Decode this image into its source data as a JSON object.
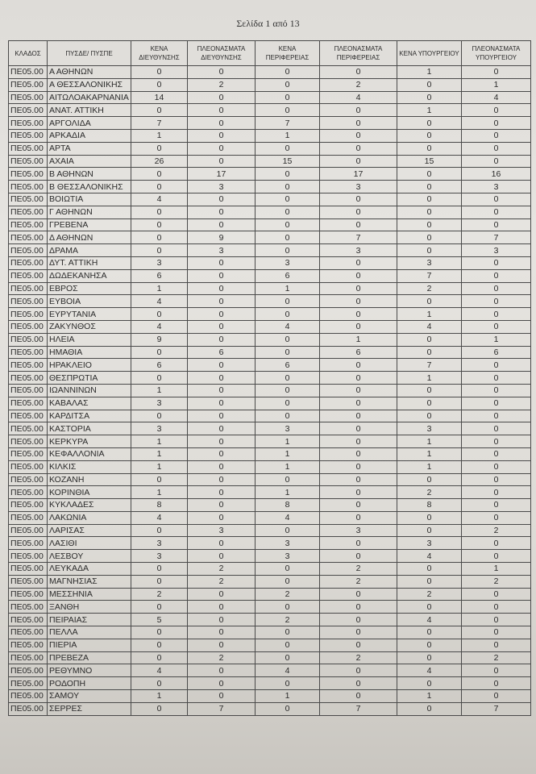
{
  "header": {
    "page": "Σελίδα 1 από 13"
  },
  "table": {
    "columns": [
      "ΚΛΑΔΟΣ",
      "ΠΥΣΔΕ/ ΠΥΣΠΕ",
      "ΚΕΝΑ ΔΙΕΥΘΥΝΣΗΣ",
      "ΠΛΕΟΝΑΣΜΑΤΑ ΔΙΕΥΘΥΝΣΗΣ",
      "ΚΕΝΑ ΠΕΡΙΦΕΡΕΙΑΣ",
      "ΠΛΕΟΝΑΣΜΑΤΑ ΠΕΡΙΦΕΡΕΙΑΣ",
      "ΚΕΝΑ ΥΠΟΥΡΓΕΙΟΥ",
      "ΠΛΕΟΝΑΣΜΑΤΑ ΥΠΟΥΡΓΕΙΟΥ"
    ],
    "rows": [
      [
        "ΠΕ05.00",
        "Α ΑΘΗΝΩΝ",
        0,
        0,
        0,
        0,
        1,
        0
      ],
      [
        "ΠΕ05.00",
        "Α ΘΕΣΣΑΛΟΝΙΚΗΣ",
        0,
        2,
        0,
        2,
        0,
        1
      ],
      [
        "ΠΕ05.00",
        "ΑΙΤΩΛΟΑΚΑΡΝΑΝΙΑ",
        14,
        0,
        0,
        4,
        0,
        4
      ],
      [
        "ΠΕ05.00",
        "ΑΝΑΤ. ΑΤΤΙΚΗ",
        0,
        0,
        0,
        0,
        1,
        0
      ],
      [
        "ΠΕ05.00",
        "ΑΡΓΟΛΙΔΑ",
        7,
        0,
        7,
        0,
        0,
        0
      ],
      [
        "ΠΕ05.00",
        "ΑΡΚΑΔΙΑ",
        1,
        0,
        1,
        0,
        0,
        0
      ],
      [
        "ΠΕ05.00",
        "ΑΡΤΑ",
        0,
        0,
        0,
        0,
        0,
        0
      ],
      [
        "ΠΕ05.00",
        "ΑΧΑΙΑ",
        26,
        0,
        15,
        0,
        15,
        0
      ],
      [
        "ΠΕ05.00",
        "Β ΑΘΗΝΩΝ",
        0,
        17,
        0,
        17,
        0,
        16
      ],
      [
        "ΠΕ05.00",
        "Β ΘΕΣΣΑΛΟΝΙΚΗΣ",
        0,
        3,
        0,
        3,
        0,
        3
      ],
      [
        "ΠΕ05.00",
        "ΒΟΙΩΤΙΑ",
        4,
        0,
        0,
        0,
        0,
        0
      ],
      [
        "ΠΕ05.00",
        "Γ ΑΘΗΝΩΝ",
        0,
        0,
        0,
        0,
        0,
        0
      ],
      [
        "ΠΕ05.00",
        "ΓΡΕΒΕΝΑ",
        0,
        0,
        0,
        0,
        0,
        0
      ],
      [
        "ΠΕ05.00",
        "Δ ΑΘΗΝΩΝ",
        0,
        9,
        0,
        7,
        0,
        7
      ],
      [
        "ΠΕ05.00",
        "ΔΡΑΜΑ",
        0,
        3,
        0,
        3,
        0,
        3
      ],
      [
        "ΠΕ05.00",
        "ΔΥΤ. ΑΤΤΙΚΗ",
        3,
        0,
        3,
        0,
        3,
        0
      ],
      [
        "ΠΕ05.00",
        "ΔΩΔΕΚΑΝΗΣΑ",
        6,
        0,
        6,
        0,
        7,
        0
      ],
      [
        "ΠΕ05.00",
        "ΕΒΡΟΣ",
        1,
        0,
        1,
        0,
        2,
        0
      ],
      [
        "ΠΕ05.00",
        "ΕΥΒΟΙΑ",
        4,
        0,
        0,
        0,
        0,
        0
      ],
      [
        "ΠΕ05.00",
        "ΕΥΡΥΤΑΝΙΑ",
        0,
        0,
        0,
        0,
        1,
        0
      ],
      [
        "ΠΕ05.00",
        "ΖΑΚΥΝΘΟΣ",
        4,
        0,
        4,
        0,
        4,
        0
      ],
      [
        "ΠΕ05.00",
        "ΗΛΕΙΑ",
        9,
        0,
        0,
        1,
        0,
        1
      ],
      [
        "ΠΕ05.00",
        "ΗΜΑΘΙΑ",
        0,
        6,
        0,
        6,
        0,
        6
      ],
      [
        "ΠΕ05.00",
        "ΗΡΑΚΛΕΙΟ",
        6,
        0,
        6,
        0,
        7,
        0
      ],
      [
        "ΠΕ05.00",
        "ΘΕΣΠΡΩΤΙΑ",
        0,
        0,
        0,
        0,
        1,
        0
      ],
      [
        "ΠΕ05.00",
        "ΙΩΑΝΝΙΝΩΝ",
        1,
        0,
        0,
        0,
        0,
        0
      ],
      [
        "ΠΕ05.00",
        "ΚΑΒΑΛΑΣ",
        3,
        0,
        0,
        0,
        0,
        0
      ],
      [
        "ΠΕ05.00",
        "ΚΑΡΔΙΤΣΑ",
        0,
        0,
        0,
        0,
        0,
        0
      ],
      [
        "ΠΕ05.00",
        "ΚΑΣΤΟΡΙΑ",
        3,
        0,
        3,
        0,
        3,
        0
      ],
      [
        "ΠΕ05.00",
        "ΚΕΡΚΥΡΑ",
        1,
        0,
        1,
        0,
        1,
        0
      ],
      [
        "ΠΕ05.00",
        "ΚΕΦΑΛΛΟΝΙΑ",
        1,
        0,
        1,
        0,
        1,
        0
      ],
      [
        "ΠΕ05.00",
        "ΚΙΛΚΙΣ",
        1,
        0,
        1,
        0,
        1,
        0
      ],
      [
        "ΠΕ05.00",
        "ΚΟΖΑΝΗ",
        0,
        0,
        0,
        0,
        0,
        0
      ],
      [
        "ΠΕ05.00",
        "ΚΟΡΙΝΘΙΑ",
        1,
        0,
        1,
        0,
        2,
        0
      ],
      [
        "ΠΕ05.00",
        "ΚΥΚΛΑΔΕΣ",
        8,
        0,
        8,
        0,
        8,
        0
      ],
      [
        "ΠΕ05.00",
        "ΛΑΚΩΝΙΑ",
        4,
        0,
        4,
        0,
        0,
        0
      ],
      [
        "ΠΕ05.00",
        "ΛΑΡΙΣΑΣ",
        0,
        3,
        0,
        3,
        0,
        2
      ],
      [
        "ΠΕ05.00",
        "ΛΑΣΙΘΙ",
        3,
        0,
        3,
        0,
        3,
        0
      ],
      [
        "ΠΕ05.00",
        "ΛΕΣΒΟΥ",
        3,
        0,
        3,
        0,
        4,
        0
      ],
      [
        "ΠΕ05.00",
        "ΛΕΥΚΑΔΑ",
        0,
        2,
        0,
        2,
        0,
        1
      ],
      [
        "ΠΕ05.00",
        "ΜΑΓΝΗΣΙΑΣ",
        0,
        2,
        0,
        2,
        0,
        2
      ],
      [
        "ΠΕ05.00",
        "ΜΕΣΣΗΝΙΑ",
        2,
        0,
        2,
        0,
        2,
        0
      ],
      [
        "ΠΕ05.00",
        "ΞΑΝΘΗ",
        0,
        0,
        0,
        0,
        0,
        0
      ],
      [
        "ΠΕ05.00",
        "ΠΕΙΡΑΙΑΣ",
        5,
        0,
        2,
        0,
        4,
        0
      ],
      [
        "ΠΕ05.00",
        "ΠΕΛΛΑ",
        0,
        0,
        0,
        0,
        0,
        0
      ],
      [
        "ΠΕ05.00",
        "ΠΙΕΡΙΑ",
        0,
        0,
        0,
        0,
        0,
        0
      ],
      [
        "ΠΕ05.00",
        "ΠΡΕΒΕΖΑ",
        0,
        2,
        0,
        2,
        0,
        2
      ],
      [
        "ΠΕ05.00",
        "ΡΕΘΥΜΝΟ",
        4,
        0,
        4,
        0,
        4,
        0
      ],
      [
        "ΠΕ05.00",
        "ΡΟΔΟΠΗ",
        0,
        0,
        0,
        0,
        0,
        0
      ],
      [
        "ΠΕ05.00",
        "ΣΑΜΟΥ",
        1,
        0,
        1,
        0,
        1,
        0
      ],
      [
        "ΠΕ05.00",
        "ΣΕΡΡΕΣ",
        0,
        7,
        0,
        7,
        0,
        7
      ]
    ]
  }
}
